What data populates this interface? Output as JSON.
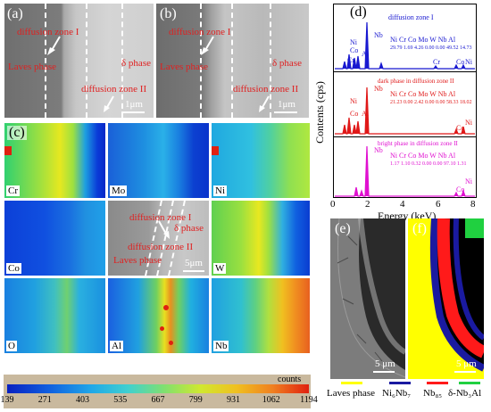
{
  "panel_letters": {
    "a": "(a)",
    "b": "(b)",
    "c": "(c)",
    "d": "(d)",
    "e": "(e)",
    "f": "(f)"
  },
  "sem_a": {
    "diffusion_zone_1": "diffusion zone I",
    "laves_phase": "Laves phase",
    "delta_phase": "δ phase",
    "diffusion_zone_2": "diffusion zone II",
    "scale": "1μm"
  },
  "sem_b": {
    "diffusion_zone_1": "diffusion zone I",
    "laves_phase": "Laves phase",
    "delta_phase": "δ phase",
    "diffusion_zone_2": "diffusion zone II",
    "scale": "1μm"
  },
  "maps": [
    {
      "label": "Cr"
    },
    {
      "label": "Mo"
    },
    {
      "label": "Ni"
    },
    {
      "label": "Co"
    },
    {
      "label": ""
    },
    {
      "label": "W"
    },
    {
      "label": "O"
    },
    {
      "label": "Al"
    },
    {
      "label": "Nb"
    }
  ],
  "center_sem": {
    "diffusion_zone_1": "diffusion zone I",
    "delta_phase": "δ phase",
    "diffusion_zone_2": "diffusion zone II",
    "laves_phase": "Laves phase",
    "scale": "5μm"
  },
  "colorbar": {
    "unit": "counts",
    "ticks": [
      "139",
      "271",
      "403",
      "535",
      "667",
      "799",
      "931",
      "1062",
      "1194"
    ]
  },
  "eds": {
    "ylabel": "Contents (cps)",
    "xlabel": "Energy (keV)",
    "xticks": [
      "0",
      "2",
      "4",
      "6",
      "8"
    ],
    "spectra": [
      {
        "title": "diffusion zone I",
        "elements": "Ni Cr Co Mo W Nb Al",
        "values": "29.79  1.69  4.26  0.00  0.00  49.52  14.73",
        "color": "#1818d0",
        "peaks": {
          "nb": "Nb",
          "ni": "Ni",
          "co": "Co",
          "cr": "Cr",
          "al": "Al",
          "cr2": "Cr",
          "co2": "Co",
          "ni2": "Ni"
        }
      },
      {
        "title": "dark phase in diffusion zone II",
        "elements": "Ni Cr Co Mo W Nb Al",
        "values": "21.23  0.00  2.42  0.00  0.00  58.33  18.02",
        "color": "#e01818",
        "peaks": {
          "nb": "Nb",
          "ni": "Ni",
          "co": "Co",
          "al": "Al",
          "co2": "Co",
          "ni2": "Ni"
        }
      },
      {
        "title": "bright phase in diffusion zone II",
        "elements": "Ni Cr Co Mo W Nb Al",
        "values": "1.17  1.10  0.32  0.00  0.00  97.10  1.31",
        "color": "#e010d0",
        "peaks": {
          "nb": "Nb",
          "co": "Co",
          "ni": "Ni"
        }
      }
    ]
  },
  "panel_e": {
    "scale": "5 μm"
  },
  "panel_f": {
    "scale": "5 μm"
  },
  "phase_legend": [
    {
      "label": "Laves phase",
      "color": "#ffff00"
    },
    {
      "label": "Ni₆Nb₇",
      "color": "#1a1aa0"
    },
    {
      "label": "Nb₈₅",
      "color": "#ff1a1a"
    },
    {
      "label": "δ-Nb₃Al",
      "color": "#20d040"
    }
  ]
}
